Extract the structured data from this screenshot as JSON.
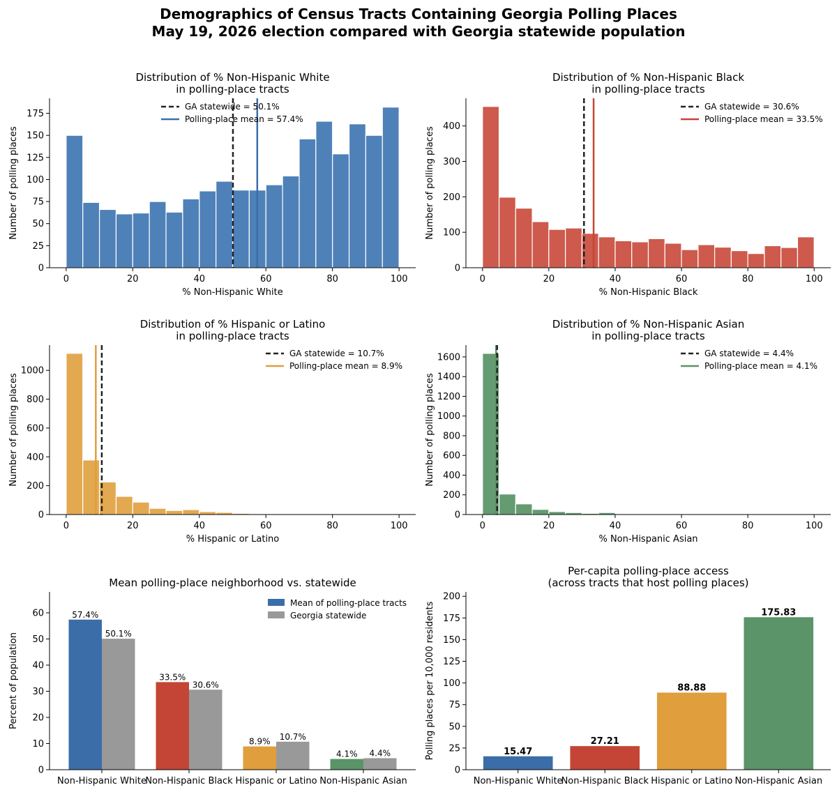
{
  "suptitle": {
    "line1": "Demographics of Census Tracts Containing Georgia Polling Places",
    "line2": "May 19, 2026 election compared with Georgia statewide population"
  },
  "colors": {
    "white": "#4f81b9",
    "black": "#cd5a4c",
    "hispanic": "#e3a950",
    "asian": "#649b71",
    "blue": "#3b6ea8",
    "red": "#c44535",
    "orange": "#e09e3c",
    "green": "#5a9468",
    "gray": "#999999"
  },
  "chart_data": [
    {
      "type": "bar",
      "title": [
        "Distribution of % Non-Hispanic White",
        "in polling-place tracts"
      ],
      "xlabel": "% Non-Hispanic White",
      "ylabel": "Number of polling places",
      "color_key": "white",
      "bin_edges": [
        0,
        5,
        10,
        15,
        20,
        25,
        30,
        35,
        40,
        45,
        50,
        55,
        60,
        65,
        70,
        75,
        80,
        85,
        90,
        95,
        100
      ],
      "values": [
        150,
        74,
        66,
        61,
        62,
        75,
        63,
        78,
        87,
        98,
        88,
        88,
        94,
        104,
        146,
        166,
        129,
        163,
        150,
        182
      ],
      "xlim": [
        -5,
        105
      ],
      "ylim": [
        0,
        192
      ],
      "xticks": [
        0,
        20,
        40,
        60,
        80,
        100
      ],
      "yticks": [
        0,
        25,
        50,
        75,
        100,
        125,
        150,
        175
      ],
      "statewide": 50.1,
      "mean": 57.4,
      "mean_color_key": "blue",
      "legend": [
        "GA statewide = 50.1%",
        "Polling-place mean = 57.4%"
      ],
      "legend_placement": "top-center"
    },
    {
      "type": "bar",
      "title": [
        "Distribution of % Non-Hispanic Black",
        "in polling-place tracts"
      ],
      "xlabel": "% Non-Hispanic Black",
      "ylabel": "Number of polling places",
      "color_key": "black",
      "bin_edges": [
        0,
        5,
        10,
        15,
        20,
        25,
        30,
        35,
        40,
        45,
        50,
        55,
        60,
        65,
        70,
        75,
        80,
        85,
        90,
        95,
        100
      ],
      "values": [
        455,
        199,
        168,
        130,
        108,
        112,
        97,
        87,
        76,
        73,
        82,
        69,
        51,
        65,
        58,
        48,
        40,
        62,
        57,
        87
      ],
      "xlim": [
        -5,
        105
      ],
      "ylim": [
        0,
        478
      ],
      "xticks": [
        0,
        20,
        40,
        60,
        80,
        100
      ],
      "yticks": [
        0,
        100,
        200,
        300,
        400
      ],
      "statewide": 30.6,
      "mean": 33.5,
      "mean_color_key": "red",
      "legend": [
        "GA statewide = 30.6%",
        "Polling-place mean = 33.5%"
      ],
      "legend_placement": "top-right"
    },
    {
      "type": "bar",
      "title": [
        "Distribution of % Hispanic or Latino",
        "in polling-place tracts"
      ],
      "xlabel": "% Hispanic or Latino",
      "ylabel": "Number of polling places",
      "color_key": "hispanic",
      "bin_edges": [
        0,
        5,
        10,
        15,
        20,
        25,
        30,
        35,
        40,
        45,
        50,
        55,
        60,
        65,
        70,
        75,
        80,
        85,
        90,
        95,
        100
      ],
      "values": [
        1118,
        378,
        226,
        126,
        86,
        43,
        28,
        34,
        20,
        15,
        8,
        3,
        3,
        2,
        1,
        0,
        0,
        0,
        0,
        0
      ],
      "xlim": [
        -5,
        105
      ],
      "ylim": [
        0,
        1175
      ],
      "xticks": [
        0,
        20,
        40,
        60,
        80,
        100
      ],
      "yticks": [
        0,
        200,
        400,
        600,
        800,
        1000
      ],
      "statewide": 10.7,
      "mean": 8.9,
      "mean_color_key": "orange",
      "legend": [
        "GA statewide = 10.7%",
        "Polling-place mean = 8.9%"
      ],
      "legend_placement": "top-right"
    },
    {
      "type": "bar",
      "title": [
        "Distribution of % Non-Hispanic Asian",
        "in polling-place tracts"
      ],
      "xlabel": "% Non-Hispanic Asian",
      "ylabel": "Number of polling places",
      "color_key": "asian",
      "bin_edges": [
        0,
        5,
        10,
        15,
        20,
        25,
        30,
        35,
        40,
        45,
        50,
        55,
        60,
        65,
        70,
        75,
        80,
        85,
        90,
        95,
        100
      ],
      "values": [
        1636,
        208,
        108,
        52,
        30,
        20,
        12,
        20,
        2,
        1,
        0,
        0,
        0,
        0,
        0,
        0,
        0,
        0,
        0,
        0
      ],
      "xlim": [
        -5,
        105
      ],
      "ylim": [
        0,
        1720
      ],
      "xticks": [
        0,
        20,
        40,
        60,
        80,
        100
      ],
      "yticks": [
        0,
        200,
        400,
        600,
        800,
        1000,
        1200,
        1400,
        1600
      ],
      "statewide": 4.4,
      "mean": 4.1,
      "mean_color_key": "green",
      "legend": [
        "GA statewide = 4.4%",
        "Polling-place mean = 4.1%"
      ],
      "legend_placement": "top-right"
    },
    {
      "type": "bar",
      "title": [
        "Mean polling-place neighborhood vs. statewide"
      ],
      "xlabel": "",
      "ylabel": "Percent of population",
      "categories": [
        "Non-Hispanic White",
        "Non-Hispanic Black",
        "Hispanic or Latino",
        "Non-Hispanic Asian"
      ],
      "series": [
        {
          "name": "Mean of polling-place tracts",
          "values": [
            57.4,
            33.5,
            8.9,
            4.1
          ],
          "labels": [
            "57.4%",
            "33.5%",
            "8.9%",
            "4.1%"
          ],
          "color_keys": [
            "blue",
            "red",
            "orange",
            "green"
          ]
        },
        {
          "name": "Georgia statewide",
          "values": [
            50.1,
            30.6,
            10.7,
            4.4
          ],
          "labels": [
            "50.1%",
            "30.6%",
            "10.7%",
            "4.4%"
          ],
          "color_keys": [
            "gray",
            "gray",
            "gray",
            "gray"
          ]
        }
      ],
      "ylim": [
        0,
        68
      ],
      "yticks": [
        0,
        10,
        20,
        30,
        40,
        50,
        60
      ],
      "legend_placement": "top-right"
    },
    {
      "type": "bar",
      "title": [
        "Per-capita polling-place access",
        "(across tracts that host polling places)"
      ],
      "xlabel": "",
      "ylabel": "Polling places per 10,000 residents",
      "categories": [
        "Non-Hispanic White",
        "Non-Hispanic Black",
        "Hispanic or Latino",
        "Non-Hispanic Asian"
      ],
      "values": [
        15.47,
        27.21,
        88.88,
        175.83
      ],
      "labels": [
        "15.47",
        "27.21",
        "88.88",
        "175.83"
      ],
      "color_keys": [
        "blue",
        "red",
        "orange",
        "green"
      ],
      "ylim": [
        0,
        205
      ],
      "yticks": [
        0,
        25,
        50,
        75,
        100,
        125,
        150,
        175,
        200
      ]
    }
  ]
}
